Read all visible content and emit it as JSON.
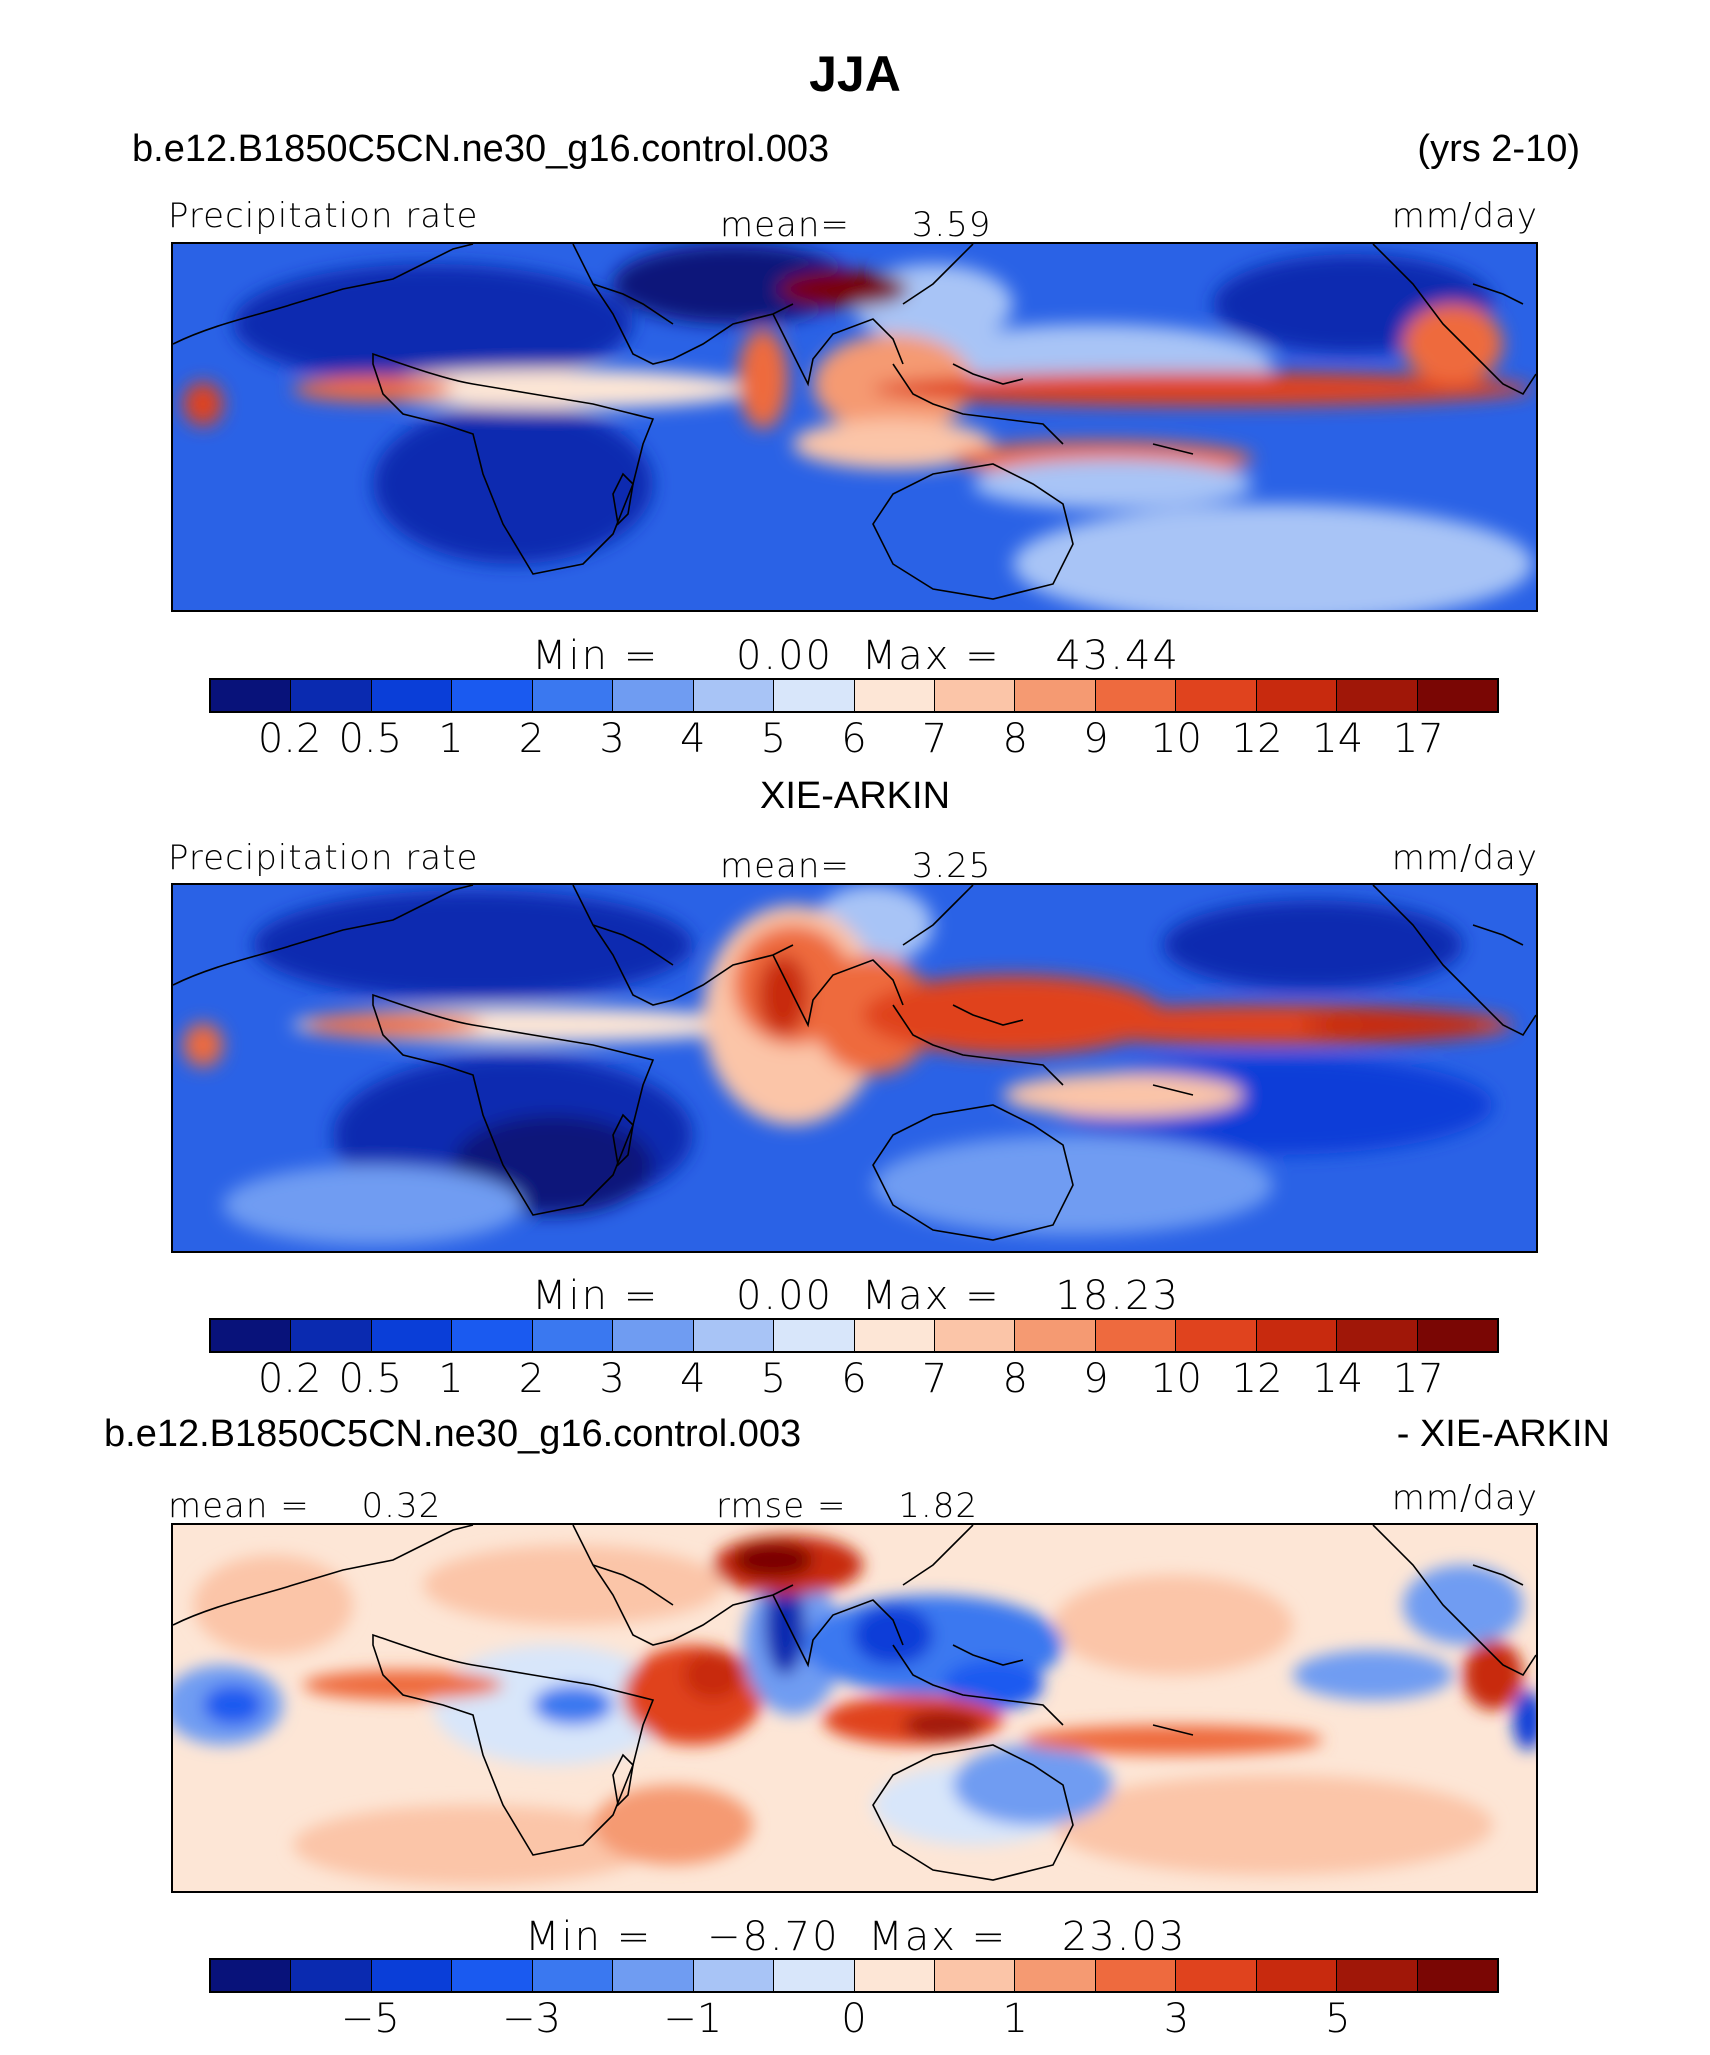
{
  "figure": {
    "title": "JJA"
  },
  "panels": [
    {
      "id": "model",
      "header_left": "b.e12.B1850C5CN.ne30_g16.control.003",
      "header_right": "(yrs 2-10)",
      "var_label": "Precipitation rate",
      "stat_label": "mean=",
      "stat_value": "3.59",
      "unit": "mm/day",
      "min_label": "Min  =",
      "min_value": "0.00",
      "max_label": "Max  =",
      "max_value": "43.44"
    },
    {
      "id": "obs",
      "header_center": "XIE-ARKIN",
      "var_label": "Precipitation rate",
      "stat_label": "mean=",
      "stat_value": "3.25",
      "unit": "mm/day",
      "min_label": "Min  =",
      "min_value": "0.00",
      "max_label": "Max  =",
      "max_value": "18.23"
    },
    {
      "id": "diff",
      "header_left": "b.e12.B1850C5CN.ne30_g16.control.003",
      "header_right": "- XIE-ARKIN",
      "mean_label": "mean  =",
      "mean_value": "0.32",
      "rmse_label": "rmse  =",
      "rmse_value": "1.82",
      "unit": "mm/day",
      "min_label": "Min  =",
      "min_value": "−8.70",
      "max_label": "Max  =",
      "max_value": "23.03"
    }
  ],
  "colorbar": {
    "colors": [
      "#08127a",
      "#0a2ab0",
      "#0a3ed8",
      "#1a5af0",
      "#3a78f0",
      "#6f9cf2",
      "#a8c4f6",
      "#d8e6fa",
      "#fde6d6",
      "#fbc5a8",
      "#f59a72",
      "#ee6a3e",
      "#e0431e",
      "#c82a0e",
      "#a01708",
      "#7a0604"
    ],
    "precip_ticks": [
      "0.2",
      "0.5",
      "1",
      "2",
      "3",
      "4",
      "5",
      "6",
      "7",
      "8",
      "9",
      "10",
      "12",
      "14",
      "17"
    ],
    "diff_ticks": [
      {
        "label": "−5",
        "boundary": 2
      },
      {
        "label": "−3",
        "boundary": 4
      },
      {
        "label": "−1",
        "boundary": 6
      },
      {
        "label": "0",
        "boundary": 8
      },
      {
        "label": "1",
        "boundary": 10
      },
      {
        "label": "3",
        "boundary": 12
      },
      {
        "label": "5",
        "boundary": 14
      }
    ]
  }
}
